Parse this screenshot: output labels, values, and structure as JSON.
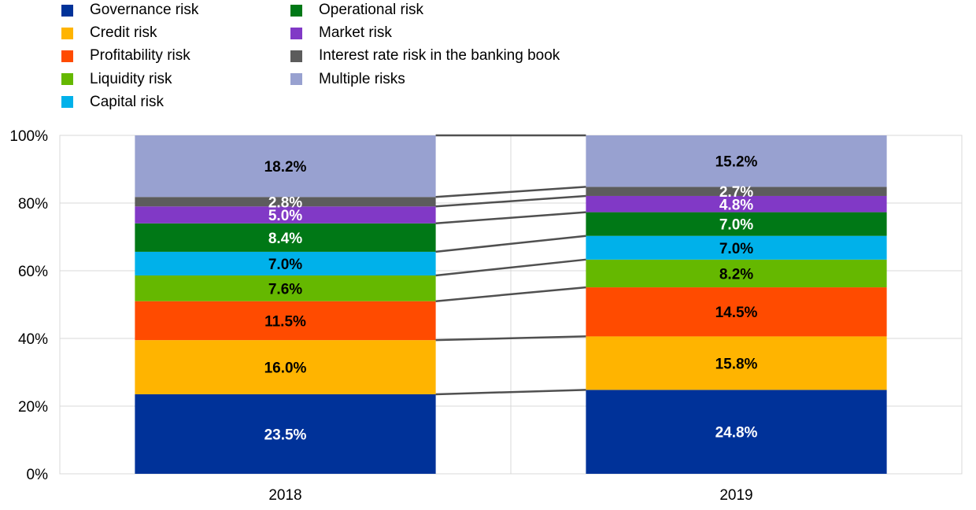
{
  "chart_data": {
    "type": "bar",
    "stacked": true,
    "normalized": true,
    "categories": [
      "2018",
      "2019"
    ],
    "series": [
      {
        "name": "Governance risk",
        "color": "#003299",
        "label_color": "#ffffff",
        "values": [
          23.5,
          24.8
        ],
        "labels": [
          "23.5%",
          "24.8%"
        ]
      },
      {
        "name": "Credit risk",
        "color": "#ffb400",
        "label_color": "#000000",
        "values": [
          16.0,
          15.8
        ],
        "labels": [
          "16.0%",
          "15.8%"
        ]
      },
      {
        "name": "Profitability risk",
        "color": "#ff4b00",
        "label_color": "#000000",
        "values": [
          11.5,
          14.5
        ],
        "labels": [
          "11.5%",
          "14.5%"
        ]
      },
      {
        "name": "Liquidity risk",
        "color": "#65b800",
        "label_color": "#000000",
        "values": [
          7.6,
          8.2
        ],
        "labels": [
          "7.6%",
          "8.2%"
        ]
      },
      {
        "name": "Capital risk",
        "color": "#00b1ea",
        "label_color": "#000000",
        "values": [
          7.0,
          7.0
        ],
        "labels": [
          "7.0%",
          "7.0%"
        ]
      },
      {
        "name": "Operational risk",
        "color": "#007816",
        "label_color": "#ffffff",
        "values": [
          8.4,
          7.0
        ],
        "labels": [
          "8.4%",
          "7.0%"
        ]
      },
      {
        "name": "Market risk",
        "color": "#8139c6",
        "label_color": "#ffffff",
        "values": [
          5.0,
          4.8
        ],
        "labels": [
          "5.0%",
          "4.8%"
        ]
      },
      {
        "name": "Interest rate risk in the banking book",
        "color": "#5c5c5c",
        "label_color": "#ffffff",
        "values": [
          2.8,
          2.7
        ],
        "labels": [
          "2.8%",
          "2.7%"
        ]
      },
      {
        "name": "Multiple risks",
        "color": "#98a1d0",
        "label_color": "#000000",
        "values": [
          18.2,
          15.2
        ],
        "labels": [
          "18.2%",
          "15.2%"
        ]
      }
    ],
    "y_ticks": [
      "0%",
      "20%",
      "40%",
      "60%",
      "80%",
      "100%"
    ],
    "ylim": [
      0,
      100
    ],
    "grid": true,
    "series_lines": true,
    "legend_position": "top-left, two columns",
    "title": "",
    "xlabel": "",
    "ylabel": ""
  }
}
